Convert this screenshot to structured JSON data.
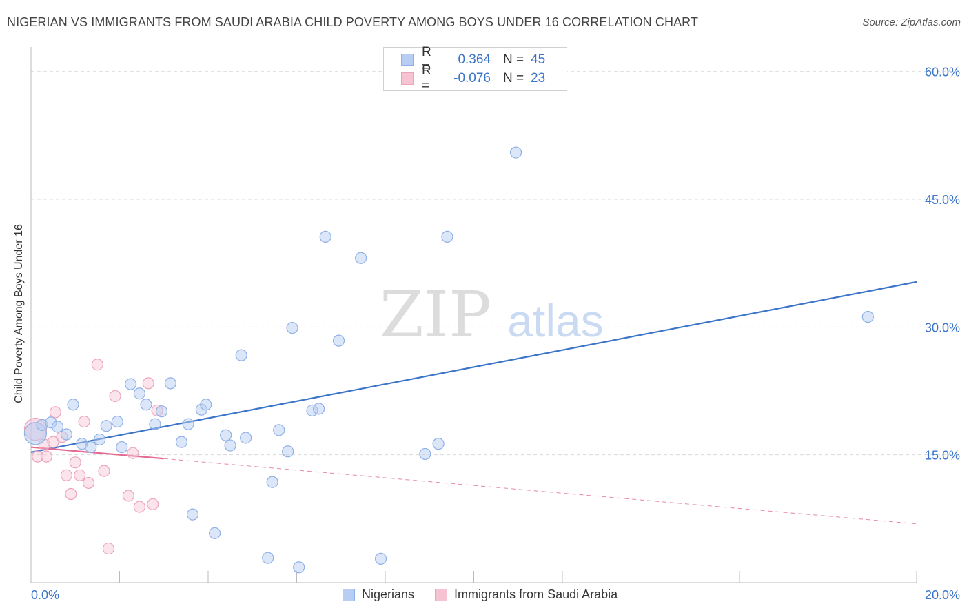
{
  "header": {
    "title": "NIGERIAN VS IMMIGRANTS FROM SAUDI ARABIA CHILD POVERTY AMONG BOYS UNDER 16 CORRELATION CHART",
    "source": "Source: ZipAtlas.com"
  },
  "watermark": {
    "zip": "ZIP",
    "atlas": "atlas"
  },
  "colors": {
    "blue": "#3b74c8",
    "blue_fill": "#b7cdf2",
    "blue_stroke": "#8fb0e6",
    "pink": "#e36a93",
    "pink_fill": "#f6c3d3",
    "pink_stroke": "#eda3ba",
    "grid": "#d9d9d9",
    "axis_text": "#3b74c8"
  },
  "legend": {
    "rows": [
      {
        "r_label": "R =",
        "r_value": "0.364",
        "n_label": "N =",
        "n_value": "45"
      },
      {
        "r_label": "R =",
        "r_value": "-0.076",
        "n_label": "N =",
        "n_value": "23"
      }
    ]
  },
  "bottom_legend": {
    "series1": "Nigerians",
    "series2": "Immigrants from Saudi Arabia"
  },
  "chart_data": {
    "type": "scatter",
    "title": "NIGERIAN VS IMMIGRANTS FROM SAUDI ARABIA CHILD POVERTY AMONG BOYS UNDER 16 CORRELATION CHART",
    "xlabel": "",
    "ylabel": "Child Poverty Among Boys Under 16",
    "xlim": [
      0,
      20
    ],
    "ylim": [
      0,
      62
    ],
    "x_tick_labels": [
      "0.0%",
      "20.0%"
    ],
    "y_ticks": [
      15,
      30,
      45,
      60
    ],
    "y_tick_labels": [
      "15.0%",
      "30.0%",
      "45.0%",
      "60.0%"
    ],
    "grid": true,
    "series": [
      {
        "name": "Nigerians",
        "color": "#3b74c8",
        "trend": {
          "x": [
            0,
            20
          ],
          "y": [
            15.3,
            35.3
          ],
          "solid_to": 20
        },
        "points": [
          {
            "x": 0.1,
            "y": 17.5,
            "big": true
          },
          {
            "x": 0.25,
            "y": 18.5
          },
          {
            "x": 0.45,
            "y": 18.8
          },
          {
            "x": 0.6,
            "y": 18.3
          },
          {
            "x": 0.8,
            "y": 17.4
          },
          {
            "x": 0.95,
            "y": 20.9
          },
          {
            "x": 1.15,
            "y": 16.3
          },
          {
            "x": 1.35,
            "y": 15.9
          },
          {
            "x": 1.55,
            "y": 16.8
          },
          {
            "x": 1.7,
            "y": 18.4
          },
          {
            "x": 1.95,
            "y": 18.9
          },
          {
            "x": 2.05,
            "y": 15.9
          },
          {
            "x": 2.25,
            "y": 23.3
          },
          {
            "x": 2.45,
            "y": 22.2
          },
          {
            "x": 2.6,
            "y": 20.9
          },
          {
            "x": 2.8,
            "y": 18.6
          },
          {
            "x": 2.95,
            "y": 20.1
          },
          {
            "x": 3.15,
            "y": 23.4
          },
          {
            "x": 3.4,
            "y": 16.5
          },
          {
            "x": 3.55,
            "y": 18.6
          },
          {
            "x": 3.65,
            "y": 8.0
          },
          {
            "x": 3.85,
            "y": 20.3
          },
          {
            "x": 3.95,
            "y": 20.9
          },
          {
            "x": 4.15,
            "y": 5.8
          },
          {
            "x": 4.4,
            "y": 17.3
          },
          {
            "x": 4.5,
            "y": 16.1
          },
          {
            "x": 4.75,
            "y": 26.7
          },
          {
            "x": 4.85,
            "y": 17.0
          },
          {
            "x": 5.35,
            "y": 2.9
          },
          {
            "x": 5.45,
            "y": 11.8
          },
          {
            "x": 5.6,
            "y": 17.9
          },
          {
            "x": 5.8,
            "y": 15.4
          },
          {
            "x": 5.9,
            "y": 29.9
          },
          {
            "x": 6.05,
            "y": 1.8
          },
          {
            "x": 6.35,
            "y": 20.2
          },
          {
            "x": 6.5,
            "y": 20.4
          },
          {
            "x": 6.65,
            "y": 40.6
          },
          {
            "x": 6.95,
            "y": 28.4
          },
          {
            "x": 7.45,
            "y": 38.1
          },
          {
            "x": 7.9,
            "y": 2.8
          },
          {
            "x": 8.9,
            "y": 15.1
          },
          {
            "x": 9.2,
            "y": 16.3
          },
          {
            "x": 9.4,
            "y": 40.6
          },
          {
            "x": 10.95,
            "y": 50.5
          },
          {
            "x": 18.9,
            "y": 31.2
          }
        ]
      },
      {
        "name": "Immigrants from Saudi Arabia",
        "color": "#e36a93",
        "trend": {
          "x": [
            0,
            20
          ],
          "y": [
            15.9,
            6.9
          ],
          "solid_to": 3.0
        },
        "points": [
          {
            "x": 0.1,
            "y": 18.0,
            "big": true
          },
          {
            "x": 0.15,
            "y": 14.8
          },
          {
            "x": 0.3,
            "y": 16.2
          },
          {
            "x": 0.35,
            "y": 14.8
          },
          {
            "x": 0.5,
            "y": 16.5
          },
          {
            "x": 0.55,
            "y": 20.0
          },
          {
            "x": 0.7,
            "y": 17.1
          },
          {
            "x": 0.8,
            "y": 12.6
          },
          {
            "x": 0.9,
            "y": 10.4
          },
          {
            "x": 1.0,
            "y": 14.1
          },
          {
            "x": 1.1,
            "y": 12.6
          },
          {
            "x": 1.2,
            "y": 18.9
          },
          {
            "x": 1.3,
            "y": 11.7
          },
          {
            "x": 1.5,
            "y": 25.6
          },
          {
            "x": 1.65,
            "y": 13.1
          },
          {
            "x": 1.75,
            "y": 4.0
          },
          {
            "x": 1.9,
            "y": 21.9
          },
          {
            "x": 2.2,
            "y": 10.2
          },
          {
            "x": 2.3,
            "y": 15.2
          },
          {
            "x": 2.45,
            "y": 8.9
          },
          {
            "x": 2.65,
            "y": 23.4
          },
          {
            "x": 2.75,
            "y": 9.2
          },
          {
            "x": 2.85,
            "y": 20.2
          }
        ]
      }
    ]
  }
}
